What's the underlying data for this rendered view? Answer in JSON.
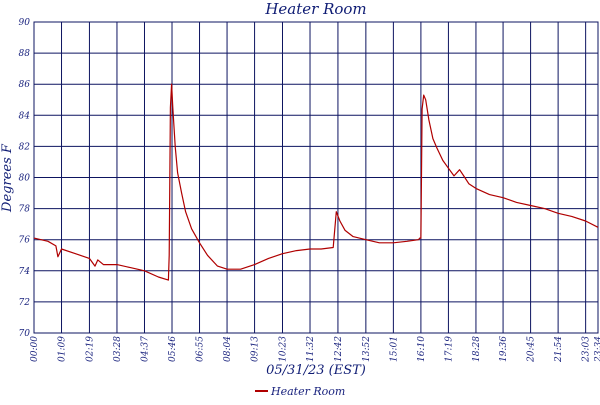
{
  "chart_data": {
    "type": "line",
    "title": "Heater Room",
    "xlabel": "05/31/23 (EST)",
    "ylabel": "Degrees F",
    "ylim": [
      70,
      90
    ],
    "yticks": [
      70,
      72,
      74,
      76,
      78,
      80,
      82,
      84,
      86,
      88,
      90
    ],
    "ytick_labels": [
      "70",
      "72",
      "74",
      "76",
      "78",
      "80",
      "82",
      "84",
      "86",
      "88",
      "90"
    ],
    "xlim": [
      "00:00",
      "23:34"
    ],
    "xtick_labels": [
      "00:00",
      "01:09",
      "02:19",
      "03:28",
      "04:37",
      "05:46",
      "06:55",
      "08:04",
      "09:13",
      "10:23",
      "11:32",
      "12:42",
      "13:52",
      "15:01",
      "16:10",
      "17:19",
      "18:28",
      "19:36",
      "20:45",
      "21:54",
      "23:03",
      "23:34"
    ],
    "grid": true,
    "legend": "bottom-center",
    "series": [
      {
        "name": "Heater Room",
        "color": "#b00000",
        "x": [
          "00:00",
          "00:35",
          "00:55",
          "01:00",
          "01:09",
          "01:44",
          "02:19",
          "02:33",
          "02:40",
          "02:54",
          "03:28",
          "04:03",
          "04:37",
          "05:12",
          "05:37",
          "05:39",
          "05:42",
          "05:45",
          "05:48",
          "05:54",
          "06:00",
          "06:10",
          "06:20",
          "06:35",
          "06:55",
          "07:15",
          "07:40",
          "08:04",
          "08:38",
          "09:13",
          "09:48",
          "10:23",
          "10:58",
          "11:32",
          "12:00",
          "12:30",
          "12:38",
          "12:41",
          "12:47",
          "13:00",
          "13:20",
          "13:52",
          "14:26",
          "15:01",
          "15:35",
          "16:04",
          "16:07",
          "16:10",
          "16:13",
          "16:17",
          "16:22",
          "16:30",
          "16:40",
          "16:50",
          "17:05",
          "17:19",
          "17:33",
          "17:47",
          "18:00",
          "18:10",
          "18:28",
          "19:02",
          "19:36",
          "20:10",
          "20:45",
          "21:20",
          "21:54",
          "22:28",
          "23:03",
          "23:34"
        ],
        "y": [
          76.1,
          75.9,
          75.6,
          74.9,
          75.4,
          75.1,
          74.8,
          74.3,
          74.7,
          74.4,
          74.4,
          74.2,
          74.0,
          73.6,
          73.4,
          75.0,
          84.5,
          86.0,
          84.5,
          82.0,
          80.3,
          79.0,
          77.8,
          76.7,
          75.8,
          75.0,
          74.3,
          74.1,
          74.1,
          74.4,
          74.8,
          75.1,
          75.3,
          75.4,
          75.4,
          75.5,
          77.8,
          77.6,
          77.2,
          76.6,
          76.2,
          76.0,
          75.8,
          75.8,
          75.9,
          76.0,
          76.1,
          76.1,
          84.4,
          85.3,
          85.0,
          83.7,
          82.5,
          81.9,
          81.1,
          80.6,
          80.1,
          80.5,
          80.0,
          79.6,
          79.3,
          78.9,
          78.7,
          78.4,
          78.2,
          78.0,
          77.7,
          77.5,
          77.2,
          76.8
        ]
      }
    ]
  }
}
